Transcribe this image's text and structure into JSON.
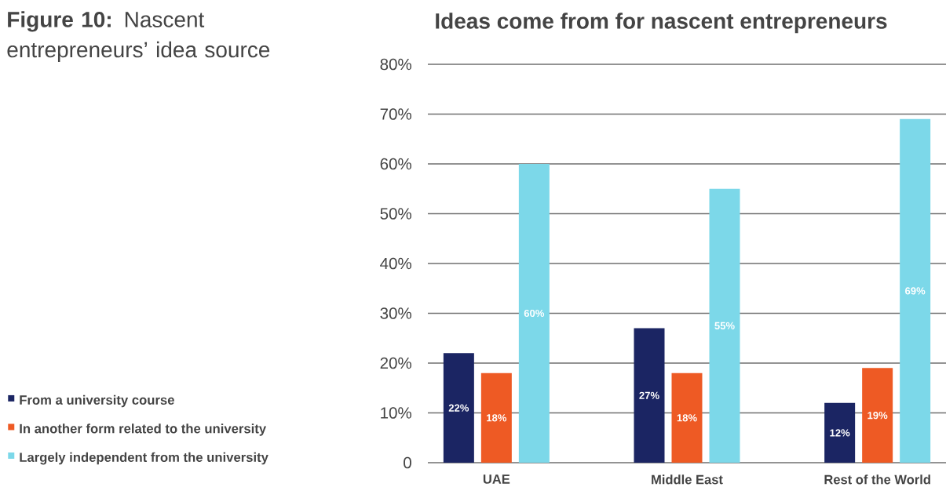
{
  "chart_data": {
    "type": "bar",
    "title": "Ideas come from for nascent entrepreneurs",
    "annotations": [
      "**Figure 10:** Nascent entrepreneurs’ idea source"
    ],
    "categories": [
      "UAE",
      "Middle East",
      "Rest of the World"
    ],
    "series": [
      {
        "name": "From a university course",
        "color": "#1b2563",
        "values": [
          22,
          27,
          12
        ],
        "value_labels": [
          "22%",
          "27%",
          "12%"
        ]
      },
      {
        "name": "In another form related to the university",
        "color": "#ee5a24",
        "values": [
          18,
          18,
          19
        ],
        "value_labels": [
          "18%",
          "18%",
          "19%"
        ]
      },
      {
        "name": "Largely independent from the university",
        "color": "#7cd8e9",
        "values": [
          60,
          55,
          69
        ],
        "value_labels": [
          "60%",
          "55%",
          "69%"
        ]
      }
    ],
    "ylim": [
      0,
      80
    ],
    "yticks": [
      0,
      {
        "value": 10,
        "label": "10%"
      },
      {
        "value": 20,
        "label": "20%"
      },
      {
        "value": 30,
        "label": "30%"
      },
      {
        "value": 40,
        "label": "40%"
      },
      {
        "value": 50,
        "label": "50%"
      },
      {
        "value": 60,
        "label": "60%"
      },
      {
        "value": 70,
        "label": "70%"
      },
      {
        "value": 80,
        "label": "80%"
      }
    ],
    "grid": "y",
    "legend": "left"
  }
}
